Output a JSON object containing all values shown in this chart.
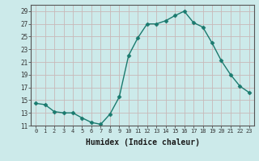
{
  "x": [
    0,
    1,
    2,
    3,
    4,
    5,
    6,
    7,
    8,
    9,
    10,
    11,
    12,
    13,
    14,
    15,
    16,
    17,
    18,
    19,
    20,
    21,
    22,
    23
  ],
  "y": [
    14.5,
    14.3,
    13.2,
    13.0,
    13.0,
    12.2,
    11.5,
    11.2,
    12.8,
    15.5,
    22.0,
    24.8,
    27.0,
    27.0,
    27.5,
    28.3,
    29.0,
    27.2,
    26.5,
    24.0,
    21.2,
    19.0,
    17.2,
    16.2
  ],
  "line_color": "#1a7a6e",
  "marker": "D",
  "marker_size": 2.5,
  "bg_color": "#cceaea",
  "grid_color": "#c8b8b8",
  "xlabel": "Humidex (Indice chaleur)",
  "xlabel_fontsize": 7,
  "ylim": [
    11,
    30
  ],
  "yticks": [
    11,
    13,
    15,
    17,
    19,
    21,
    23,
    25,
    27,
    29
  ],
  "xlim": [
    -0.5,
    23.5
  ],
  "xticks": [
    0,
    1,
    2,
    3,
    4,
    5,
    6,
    7,
    8,
    9,
    10,
    11,
    12,
    13,
    14,
    15,
    16,
    17,
    18,
    19,
    20,
    21,
    22,
    23
  ]
}
